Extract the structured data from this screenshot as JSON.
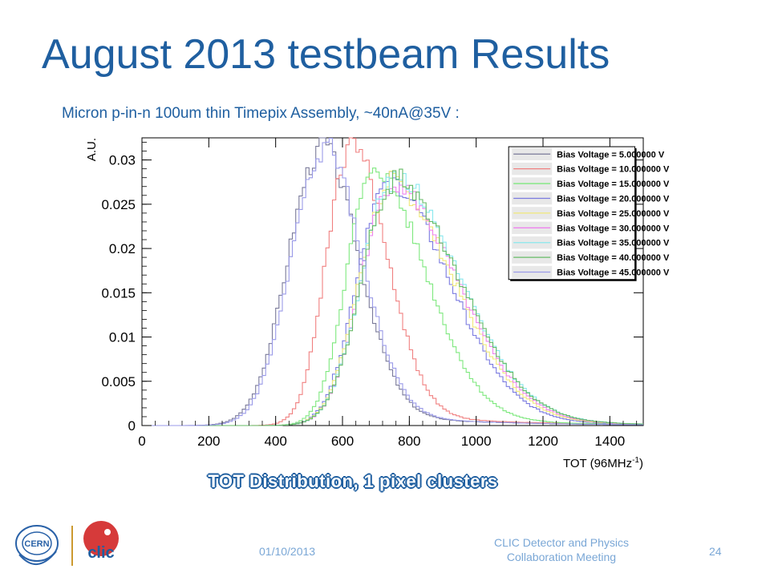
{
  "slide": {
    "title": "August 2013 testbeam Results",
    "subtitle": "Micron p-in-n 100um thin Timepix Assembly, ~40nA@35V  :",
    "caption": "TOT Distribution, 1 pixel clusters",
    "footer_date": "01/10/2013",
    "footer_line1": "CLIC Detector and Physics",
    "footer_line2": "Collaboration Meeting",
    "page_number": "24",
    "logos": {
      "cern": "CERN",
      "clic": "clic"
    },
    "accent_color": "#1f5fa0"
  },
  "chart_data": {
    "type": "line",
    "style": "step-histogram",
    "title": "",
    "xlabel": "TOT (96MHz",
    "xlabel_sup": "-1",
    "xlabel_suffix": ")",
    "ylabel": "A.U.",
    "xlim": [
      0,
      1500
    ],
    "ylim": [
      0,
      0.0325
    ],
    "xticks": [
      0,
      200,
      400,
      600,
      800,
      1000,
      1200,
      1400
    ],
    "xtick_labels": [
      "0",
      "200",
      "400",
      "600",
      "800",
      "1000",
      "1200",
      "1400"
    ],
    "yticks": [
      0,
      0.005,
      0.01,
      0.015,
      0.02,
      0.025,
      0.03
    ],
    "ytick_labels": [
      "0",
      "0.005",
      "0.01",
      "0.015",
      "0.02",
      "0.025",
      "0.03"
    ],
    "grid": false,
    "legend_position": "top-right",
    "series": [
      {
        "name": "Bias Voltage = 5.000000 V",
        "color": "#7a7a9a",
        "peak_x": 530,
        "peak_y": 0.0305,
        "sigma_left": 95,
        "sigma_right": 115
      },
      {
        "name": "Bias Voltage = 10.000000 V",
        "color": "#f08080",
        "peak_x": 620,
        "peak_y": 0.031,
        "sigma_left": 70,
        "sigma_right": 110
      },
      {
        "name": "Bias Voltage = 15.000000 V",
        "color": "#7ee87e",
        "peak_x": 685,
        "peak_y": 0.0278,
        "sigma_left": 75,
        "sigma_right": 160
      },
      {
        "name": "Bias Voltage = 20.000000 V",
        "color": "#7b7be0",
        "peak_x": 725,
        "peak_y": 0.0265,
        "sigma_left": 85,
        "sigma_right": 190
      },
      {
        "name": "Bias Voltage = 25.000000 V",
        "color": "#f0e878",
        "peak_x": 735,
        "peak_y": 0.0262,
        "sigma_left": 88,
        "sigma_right": 195
      },
      {
        "name": "Bias Voltage = 30.000000 V",
        "color": "#ee82ee",
        "peak_x": 740,
        "peak_y": 0.0262,
        "sigma_left": 88,
        "sigma_right": 198
      },
      {
        "name": "Bias Voltage = 35.000000 V",
        "color": "#88e8ee",
        "peak_x": 745,
        "peak_y": 0.0272,
        "sigma_left": 90,
        "sigma_right": 200
      },
      {
        "name": "Bias Voltage = 40.000000 V",
        "color": "#66bb66",
        "peak_x": 745,
        "peak_y": 0.0268,
        "sigma_left": 90,
        "sigma_right": 200
      },
      {
        "name": "Bias Voltage = 45.000000 V",
        "color": "#9a9ae8",
        "peak_x": 540,
        "peak_y": 0.0305,
        "sigma_left": 95,
        "sigma_right": 115
      }
    ]
  }
}
